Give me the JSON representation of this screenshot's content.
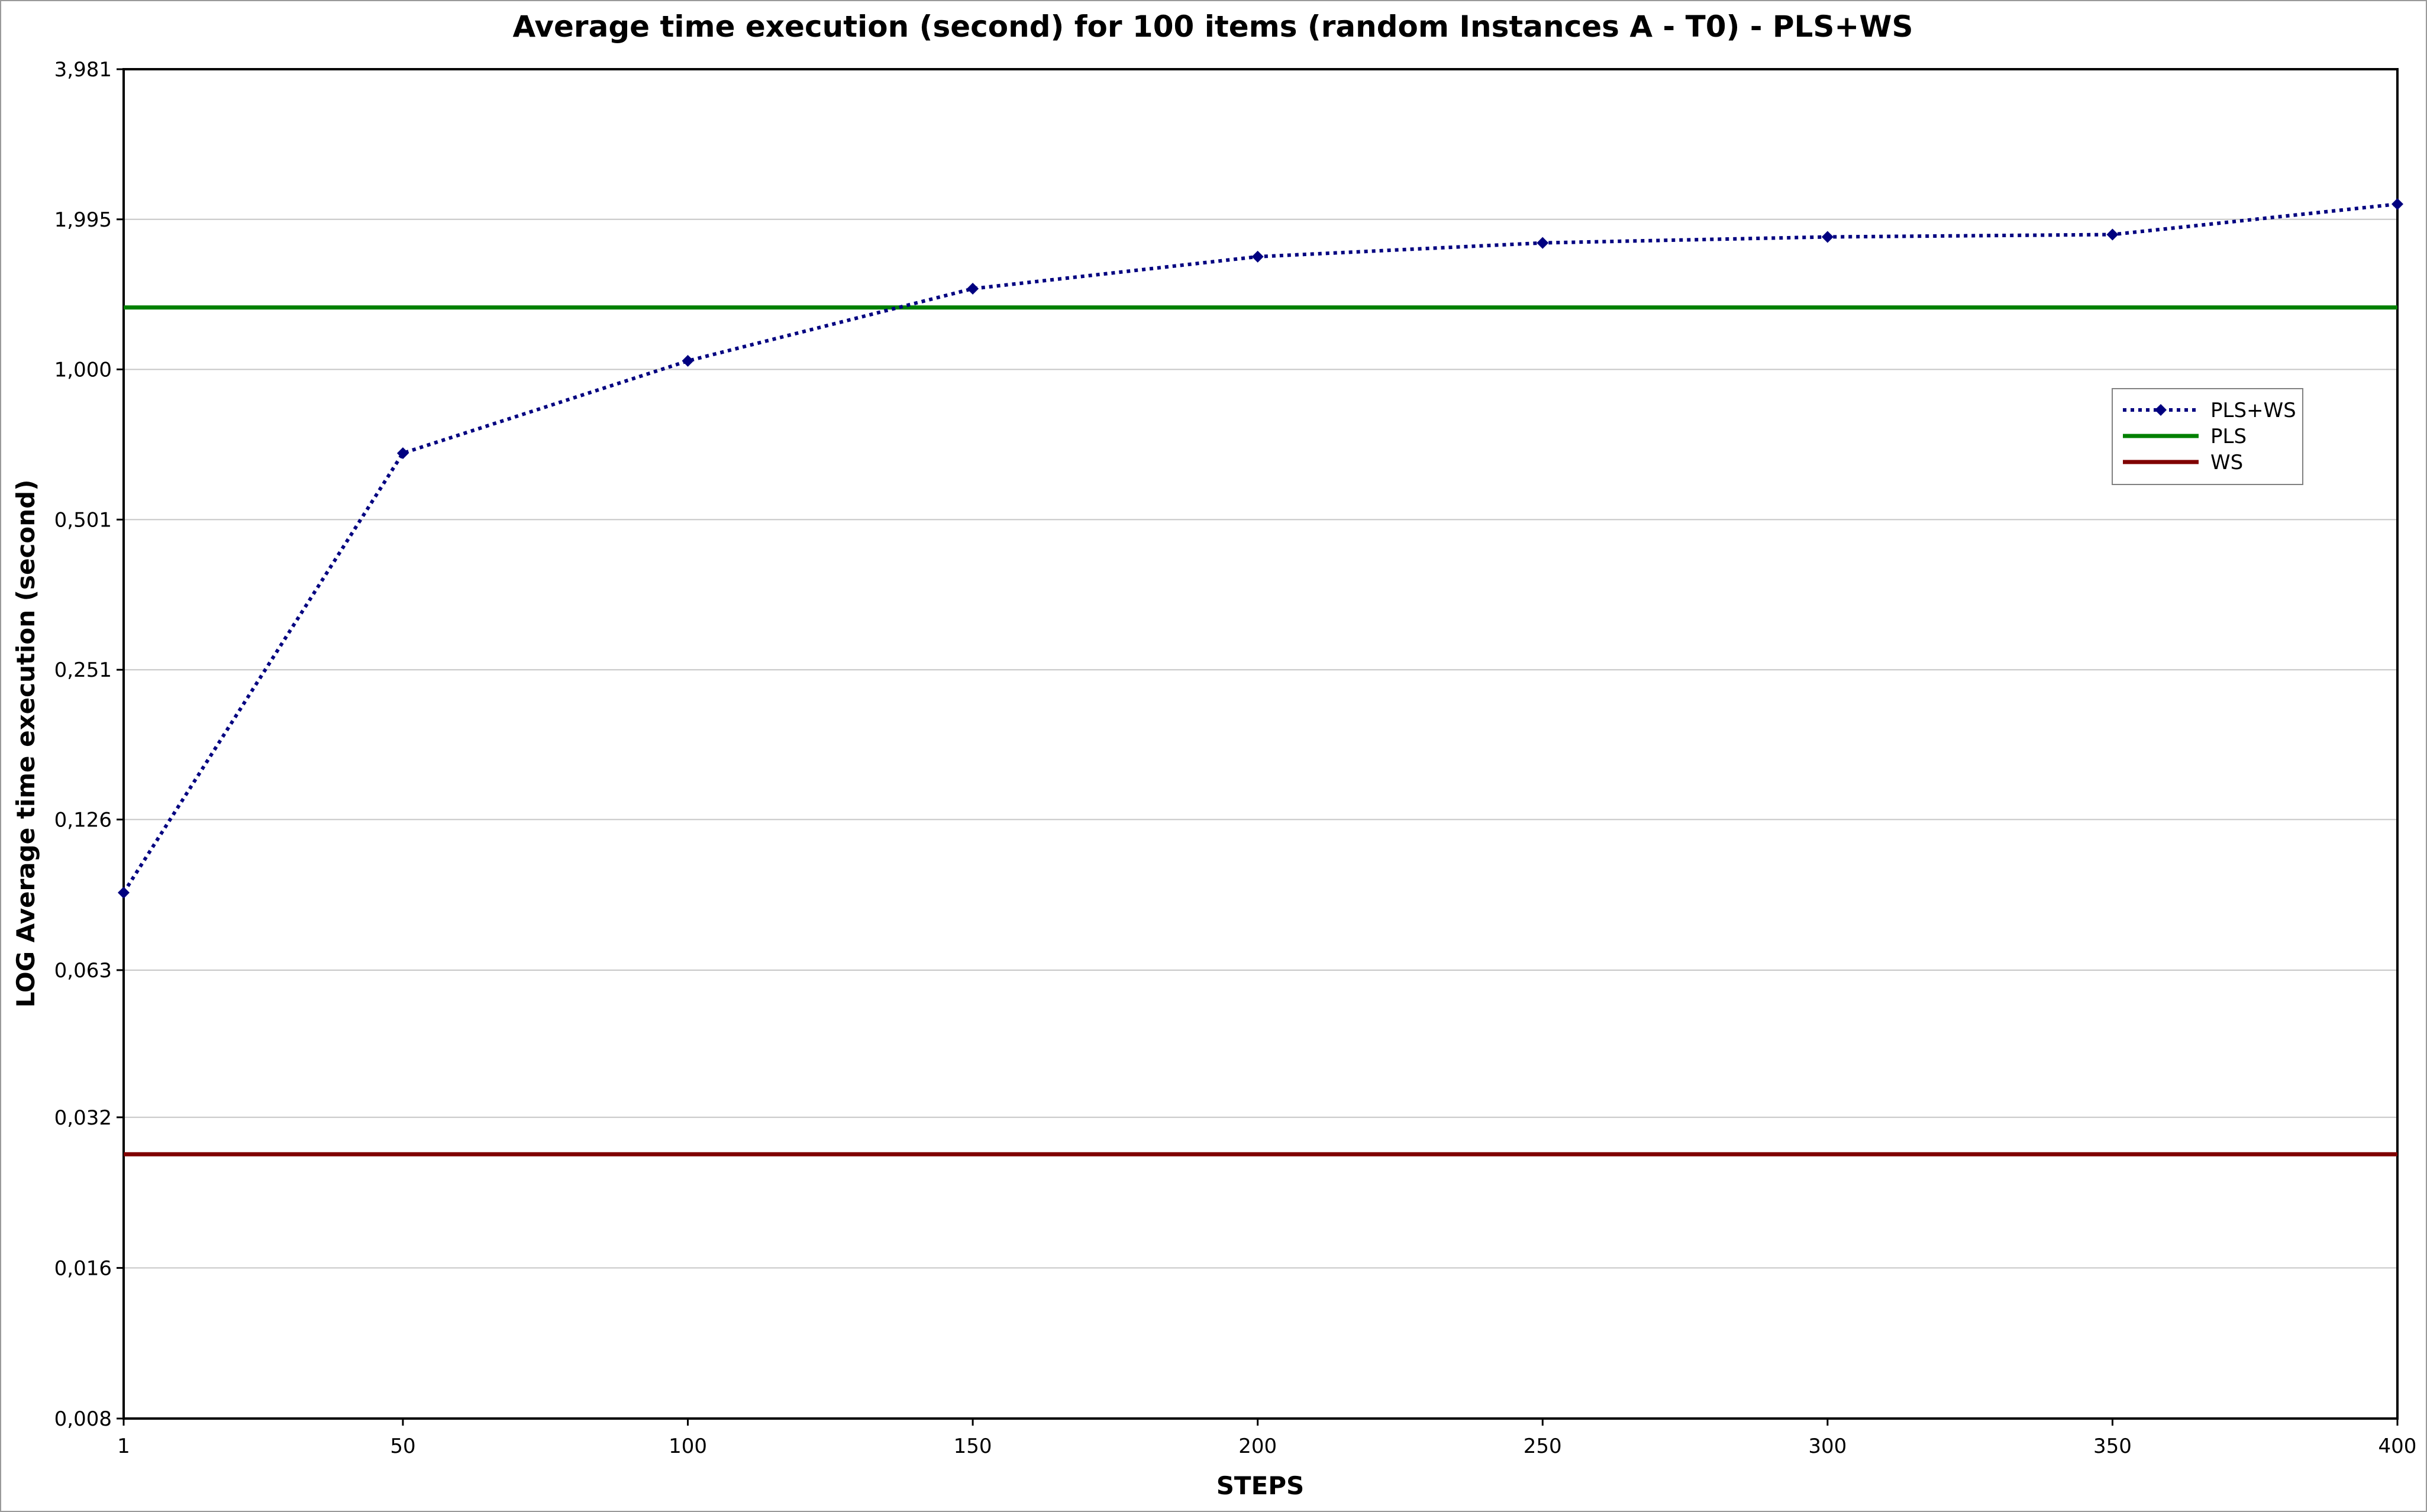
{
  "chart_data": {
    "type": "line",
    "title": "Average time execution (second) for 100 items (random Instances A - T0) - PLS+WS",
    "xlabel": "STEPS",
    "ylabel": "LOG Average time execution (second)",
    "x_scale": "linear",
    "y_scale": "log2",
    "xlim": [
      1,
      400
    ],
    "ylim": [
      0.008,
      3.981
    ],
    "x_ticks": [
      1,
      50,
      100,
      150,
      200,
      250,
      300,
      350,
      400
    ],
    "x_tick_labels": [
      "1",
      "50",
      "100",
      "150",
      "200",
      "250",
      "300",
      "350",
      "400"
    ],
    "y_ticks": [
      0.008,
      0.016,
      0.032,
      0.063,
      0.126,
      0.251,
      0.501,
      1.0,
      1.995,
      3.981
    ],
    "y_tick_labels": [
      "0,008",
      "0,016",
      "0,032",
      "0,063",
      "0,126",
      "0,251",
      "0,501",
      "1,000",
      "1,995",
      "3,981"
    ],
    "grid": "horizontal",
    "legend_position": "right",
    "series": [
      {
        "name": "PLS+WS",
        "style": "dotted-markers",
        "color": "#000080",
        "x": [
          1,
          50,
          100,
          150,
          200,
          250,
          300,
          350,
          400
        ],
        "y": [
          0.09,
          0.68,
          1.04,
          1.45,
          1.68,
          1.79,
          1.84,
          1.86,
          2.14
        ]
      },
      {
        "name": "PLS",
        "style": "solid",
        "color": "#008000",
        "x": [
          1,
          400
        ],
        "y": [
          1.33,
          1.33
        ]
      },
      {
        "name": "WS",
        "style": "solid",
        "color": "#800000",
        "x": [
          1,
          400
        ],
        "y": [
          0.027,
          0.027
        ]
      }
    ]
  }
}
